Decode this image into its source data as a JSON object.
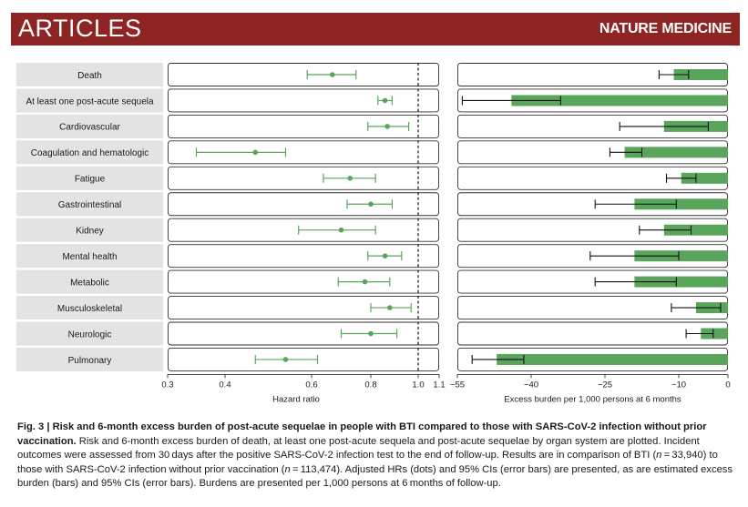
{
  "header": {
    "section": "ARTICLES",
    "journal": "NATURE MEDICINE"
  },
  "colors": {
    "banner": "#8e2424",
    "point": "#5aa55c",
    "bar": "#5aa55c",
    "label_bg": "#e3e3e3",
    "errorbar_excess": "#111111"
  },
  "chart_data": [
    {
      "type": "scatter",
      "subtype": "forest-plot",
      "xlabel": "Hazard ratio",
      "xlim": [
        0.3,
        1.1
      ],
      "ticks": [
        0.3,
        0.4,
        0.6,
        0.8,
        1.0,
        1.1
      ],
      "tick_labels": [
        "0.3",
        "0.4",
        "0.6",
        "0.8",
        "1.0",
        "1.1"
      ],
      "reference_line": 1.0,
      "categories": [
        "Death",
        "At least one post-acute sequela",
        "Cardiovascular",
        "Coagulation and hematologic",
        "Fatigue",
        "Gastrointestinal",
        "Kidney",
        "Mental health",
        "Metabolic",
        "Musculoskeletal",
        "Neurologic",
        "Pulmonary"
      ],
      "hr": [
        0.67,
        0.86,
        0.87,
        0.47,
        0.73,
        0.8,
        0.7,
        0.86,
        0.78,
        0.88,
        0.8,
        0.54
      ],
      "ci_low": [
        0.59,
        0.83,
        0.79,
        0.35,
        0.64,
        0.72,
        0.57,
        0.79,
        0.69,
        0.8,
        0.7,
        0.47
      ],
      "ci_high": [
        0.75,
        0.89,
        0.96,
        0.54,
        0.82,
        0.89,
        0.82,
        0.93,
        0.88,
        0.97,
        0.91,
        0.62
      ]
    },
    {
      "type": "bar",
      "orientation": "horizontal",
      "xlabel": "Excess burden per 1,000 persons at 6 months",
      "xlim": [
        -55,
        0
      ],
      "ticks": [
        -55,
        -40,
        -25,
        -10,
        0
      ],
      "tick_labels": [
        "−55",
        "−40",
        "−25",
        "−10",
        "0"
      ],
      "categories": [
        "Death",
        "At least one post-acute sequela",
        "Cardiovascular",
        "Coagulation and hematologic",
        "Fatigue",
        "Gastrointestinal",
        "Kidney",
        "Mental health",
        "Metabolic",
        "Musculoskeletal",
        "Neurologic",
        "Pulmonary"
      ],
      "values": [
        -11.0,
        -44.0,
        -13.0,
        -21.0,
        -9.5,
        -19.0,
        -13.0,
        -19.0,
        -19.0,
        -6.5,
        -5.5,
        -47.0
      ],
      "ci_low": [
        -14.0,
        -54.0,
        -22.0,
        -24.0,
        -12.5,
        -27.0,
        -18.0,
        -28.0,
        -27.0,
        -11.5,
        -8.5,
        -52.0
      ],
      "ci_high": [
        -8.0,
        -34.0,
        -4.0,
        -17.5,
        -6.5,
        -10.5,
        -7.5,
        -10.0,
        -10.5,
        -1.5,
        -3.0,
        -41.5
      ]
    }
  ],
  "caption": {
    "fig_label": "Fig. 3 | ",
    "title": "Risk and 6-month excess burden of post-acute sequelae in people with BTI compared to those with SARS-CoV-2 infection without prior vaccination.",
    "s1": " Risk and 6-month excess burden of death, at least one post-acute sequela and post-acute sequelae by organ system are plotted. Incident outcomes were assessed from 30 days after the positive SARS-CoV-2 infection test to the end of follow-up. Results are in comparison of BTI (",
    "n1_var": "n",
    "n1_val": " = 33,940",
    "s2": ") to those with SARS-CoV-2 infection without prior vaccination (",
    "n2_var": "n",
    "n2_val": " = 113,474",
    "s3": "). Adjusted HRs (dots) and 95% CIs (error bars) are presented, as are estimated excess burden (bars) and 95% CIs (error bars). Burdens are presented per 1,000 persons at 6 months of follow-up."
  }
}
